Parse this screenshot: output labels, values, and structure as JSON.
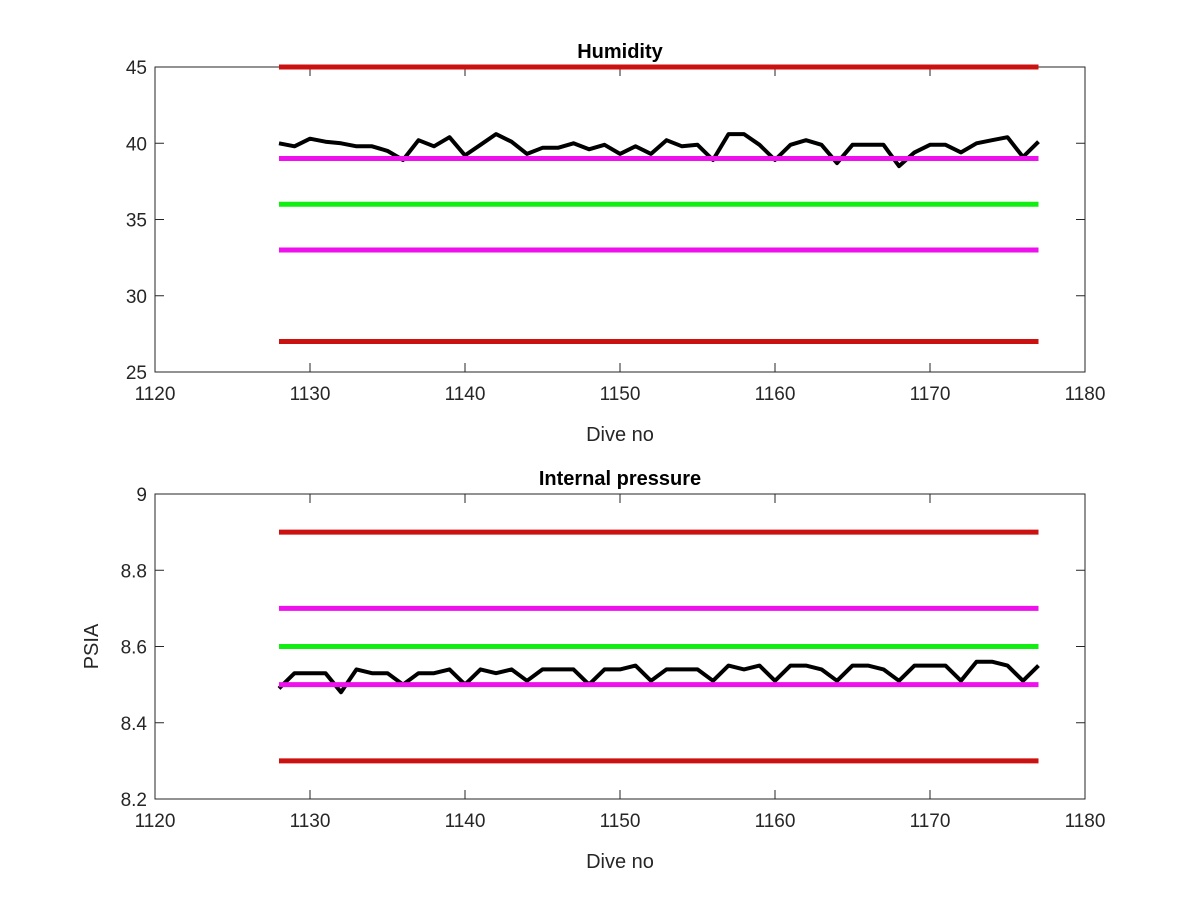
{
  "chart_data": [
    {
      "type": "line",
      "title": "Humidity",
      "xlabel": "Dive no",
      "ylabel": "",
      "xlim": [
        1120,
        1180
      ],
      "ylim": [
        25,
        45
      ],
      "xticks": [
        "1120",
        "1130",
        "1140",
        "1150",
        "1160",
        "1170",
        "1180"
      ],
      "yticks": [
        "25",
        "30",
        "35",
        "40",
        "45"
      ],
      "grid": false,
      "x": [
        1128,
        1129,
        1130,
        1131,
        1132,
        1133,
        1134,
        1135,
        1136,
        1137,
        1138,
        1139,
        1140,
        1141,
        1142,
        1143,
        1144,
        1145,
        1146,
        1147,
        1148,
        1149,
        1150,
        1151,
        1152,
        1153,
        1154,
        1155,
        1156,
        1157,
        1158,
        1159,
        1160,
        1161,
        1162,
        1163,
        1164,
        1165,
        1166,
        1167,
        1168,
        1169,
        1170,
        1171,
        1172,
        1173,
        1174,
        1175,
        1176,
        1177
      ],
      "series": [
        {
          "role": "data",
          "color": "#000000",
          "values": [
            40.0,
            39.8,
            40.3,
            40.1,
            40.0,
            39.8,
            39.8,
            39.5,
            38.9,
            40.2,
            39.8,
            40.4,
            39.2,
            39.9,
            40.6,
            40.1,
            39.3,
            39.7,
            39.7,
            40.0,
            39.6,
            39.9,
            39.3,
            39.8,
            39.3,
            40.2,
            39.8,
            39.9,
            38.9,
            40.6,
            40.6,
            39.9,
            38.9,
            39.9,
            40.2,
            39.9,
            38.7,
            39.9,
            39.9,
            39.9,
            38.5,
            39.4,
            39.9,
            39.9,
            39.4,
            40.0,
            40.2,
            40.4,
            39.1,
            40.1
          ]
        },
        {
          "role": "limit",
          "color": "#cc1111",
          "x": [
            1128,
            1177
          ],
          "values": [
            45,
            45
          ]
        },
        {
          "role": "limit",
          "color": "#ee11ee",
          "x": [
            1128,
            1177
          ],
          "values": [
            39,
            39
          ]
        },
        {
          "role": "target",
          "color": "#11ee11",
          "x": [
            1128,
            1177
          ],
          "values": [
            36,
            36
          ]
        },
        {
          "role": "limit",
          "color": "#ee11ee",
          "x": [
            1128,
            1177
          ],
          "values": [
            33,
            33
          ]
        },
        {
          "role": "limit",
          "color": "#cc1111",
          "x": [
            1128,
            1177
          ],
          "values": [
            27,
            27
          ]
        }
      ]
    },
    {
      "type": "line",
      "title": "Internal pressure",
      "xlabel": "Dive no",
      "ylabel": "PSIA",
      "xlim": [
        1120,
        1180
      ],
      "ylim": [
        8.2,
        9.0
      ],
      "xticks": [
        "1120",
        "1130",
        "1140",
        "1150",
        "1160",
        "1170",
        "1180"
      ],
      "yticks": [
        "8.2",
        "8.4",
        "8.6",
        "8.8",
        "9"
      ],
      "grid": false,
      "x": [
        1128,
        1129,
        1130,
        1131,
        1132,
        1133,
        1134,
        1135,
        1136,
        1137,
        1138,
        1139,
        1140,
        1141,
        1142,
        1143,
        1144,
        1145,
        1146,
        1147,
        1148,
        1149,
        1150,
        1151,
        1152,
        1153,
        1154,
        1155,
        1156,
        1157,
        1158,
        1159,
        1160,
        1161,
        1162,
        1163,
        1164,
        1165,
        1166,
        1167,
        1168,
        1169,
        1170,
        1171,
        1172,
        1173,
        1174,
        1175,
        1176,
        1177
      ],
      "series": [
        {
          "role": "data",
          "color": "#000000",
          "values": [
            8.49,
            8.53,
            8.53,
            8.53,
            8.48,
            8.54,
            8.53,
            8.53,
            8.5,
            8.53,
            8.53,
            8.54,
            8.5,
            8.54,
            8.53,
            8.54,
            8.51,
            8.54,
            8.54,
            8.54,
            8.5,
            8.54,
            8.54,
            8.55,
            8.51,
            8.54,
            8.54,
            8.54,
            8.51,
            8.55,
            8.54,
            8.55,
            8.51,
            8.55,
            8.55,
            8.54,
            8.51,
            8.55,
            8.55,
            8.54,
            8.51,
            8.55,
            8.55,
            8.55,
            8.51,
            8.56,
            8.56,
            8.55,
            8.51,
            8.55
          ]
        },
        {
          "role": "limit",
          "color": "#cc1111",
          "x": [
            1128,
            1177
          ],
          "values": [
            8.9,
            8.9
          ]
        },
        {
          "role": "limit",
          "color": "#ee11ee",
          "x": [
            1128,
            1177
          ],
          "values": [
            8.7,
            8.7
          ]
        },
        {
          "role": "target",
          "color": "#11ee11",
          "x": [
            1128,
            1177
          ],
          "values": [
            8.6,
            8.6
          ]
        },
        {
          "role": "limit",
          "color": "#ee11ee",
          "x": [
            1128,
            1177
          ],
          "values": [
            8.5,
            8.5
          ]
        },
        {
          "role": "limit",
          "color": "#cc1111",
          "x": [
            1128,
            1177
          ],
          "values": [
            8.3,
            8.3
          ]
        }
      ]
    }
  ]
}
